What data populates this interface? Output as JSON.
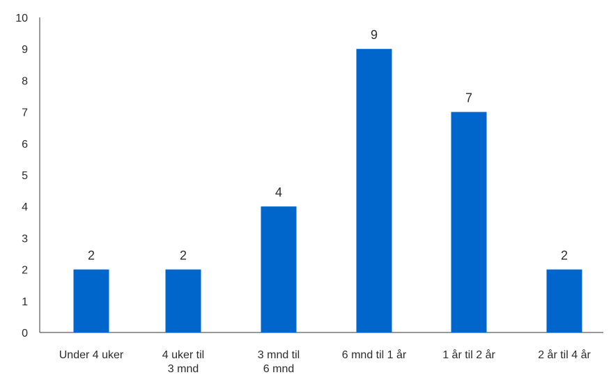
{
  "chart_data": {
    "type": "bar",
    "categories": [
      [
        "Under 4 uker"
      ],
      [
        "4 uker til",
        "3 mnd"
      ],
      [
        "3 mnd til",
        "6 mnd"
      ],
      [
        "6 mnd til 1 år"
      ],
      [
        "1 år til 2 år"
      ],
      [
        "2 år til 4 år"
      ]
    ],
    "values": [
      2,
      2,
      4,
      9,
      7,
      2
    ],
    "data_labels": [
      "2",
      "2",
      "4",
      "9",
      "7",
      "2"
    ],
    "y_ticks": [
      "0",
      "1",
      "2",
      "3",
      "4",
      "5",
      "6",
      "7",
      "8",
      "9",
      "10"
    ],
    "ylim": [
      0,
      10
    ],
    "grid": false,
    "legend": "none",
    "colors": {
      "bar": "#0066cc",
      "axis": "#333333",
      "text": "#2b2b2b"
    }
  }
}
